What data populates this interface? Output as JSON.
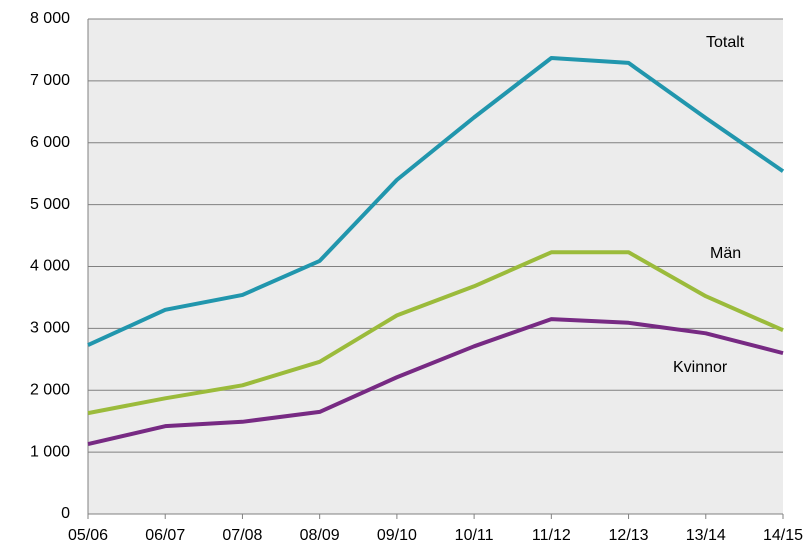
{
  "chart_data": {
    "type": "line",
    "categories": [
      "05/06",
      "06/07",
      "07/08",
      "08/09",
      "09/10",
      "10/11",
      "11/12",
      "12/13",
      "13/14",
      "14/15"
    ],
    "series": [
      {
        "name": "Totalt",
        "color": "#2196ad",
        "values": [
          2730,
          3300,
          3540,
          4090,
          5400,
          6410,
          7370,
          7290,
          6400,
          5540
        ]
      },
      {
        "name": "Män",
        "color": "#9bbb3b",
        "values": [
          1630,
          1870,
          2080,
          2460,
          3210,
          3680,
          4230,
          4230,
          3520,
          2970
        ]
      },
      {
        "name": "Kvinnor",
        "color": "#772a83",
        "values": [
          1130,
          1420,
          1490,
          1650,
          2210,
          2710,
          3150,
          3090,
          2920,
          2600
        ]
      }
    ],
    "ylim": [
      0,
      8000
    ],
    "yticks": [
      0,
      {
        "value": 1000,
        "label": "1 000"
      },
      {
        "value": 2000,
        "label": "2 000"
      },
      {
        "value": 3000,
        "label": "3 000"
      },
      {
        "value": 4000,
        "label": "4 000"
      },
      {
        "value": 5000,
        "label": "5 000"
      },
      {
        "value": 6000,
        "label": "6 000"
      },
      {
        "value": 7000,
        "label": "7 000"
      },
      {
        "value": 8000,
        "label": "8 000"
      }
    ],
    "grid": true
  }
}
